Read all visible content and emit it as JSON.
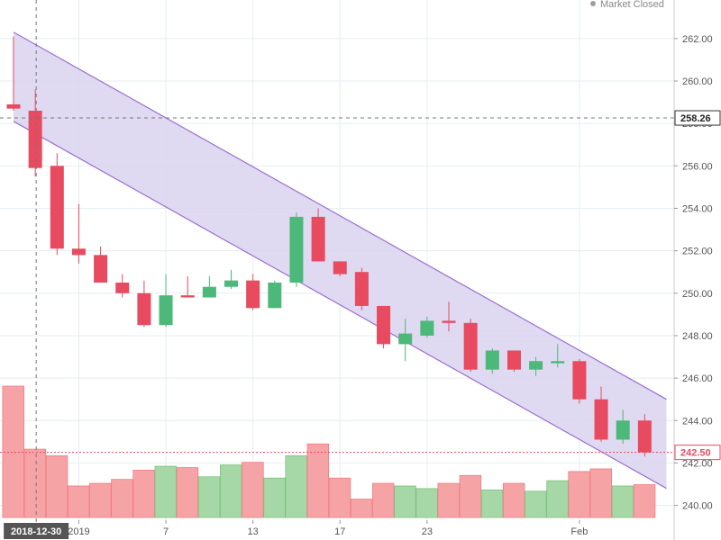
{
  "status": {
    "text": "Market Closed",
    "color": "#9e9e9e"
  },
  "chart_data": {
    "type": "candlestick",
    "ylim": [
      239.6,
      262.8
    ],
    "yticks": [
      240,
      242,
      244,
      246,
      248,
      250,
      252,
      254,
      256,
      258,
      260,
      262
    ],
    "ytick_labels": [
      "240.00",
      "242.00",
      "244.00",
      "246.00",
      "248.00",
      "250.00",
      "252.00",
      "254.00",
      "256.00",
      "258.00",
      "260.00",
      "262.00"
    ],
    "xtick_labels": [
      {
        "label": "2019",
        "index": 3
      },
      {
        "label": "7",
        "index": 7
      },
      {
        "label": "13",
        "index": 11
      },
      {
        "label": "17",
        "index": 15
      },
      {
        "label": "23",
        "index": 19
      },
      {
        "label": "Feb",
        "index": 26
      }
    ],
    "crosshair": {
      "x_label": "2018-12-30",
      "index": 1,
      "y_label": "258.26",
      "y_value": 258.26
    },
    "last_price": {
      "label": "242.50",
      "value": 242.5
    },
    "channel": {
      "upper": [
        [
          0,
          262.3
        ],
        [
          30,
          245.0
        ]
      ],
      "lower": [
        [
          0,
          258.1
        ],
        [
          30,
          240.8
        ]
      ]
    },
    "candles": [
      {
        "o": 258.9,
        "h": 262.1,
        "l": 258.6,
        "c": 258.7
      },
      {
        "o": 258.6,
        "h": 259.6,
        "l": 255.5,
        "c": 255.9
      },
      {
        "o": 256.0,
        "h": 256.6,
        "l": 251.8,
        "c": 252.1
      },
      {
        "o": 252.1,
        "h": 254.2,
        "l": 251.4,
        "c": 251.8
      },
      {
        "o": 251.8,
        "h": 252.2,
        "l": 250.5,
        "c": 250.5
      },
      {
        "o": 250.5,
        "h": 250.9,
        "l": 249.8,
        "c": 250.0
      },
      {
        "o": 250.0,
        "h": 250.6,
        "l": 248.4,
        "c": 248.5
      },
      {
        "o": 248.5,
        "h": 250.9,
        "l": 248.4,
        "c": 249.9
      },
      {
        "o": 249.9,
        "h": 250.8,
        "l": 249.8,
        "c": 249.8
      },
      {
        "o": 249.8,
        "h": 250.8,
        "l": 249.8,
        "c": 250.3
      },
      {
        "o": 250.3,
        "h": 251.1,
        "l": 250.2,
        "c": 250.6
      },
      {
        "o": 250.6,
        "h": 250.9,
        "l": 249.2,
        "c": 249.3
      },
      {
        "o": 249.3,
        "h": 250.6,
        "l": 249.3,
        "c": 250.5
      },
      {
        "o": 250.5,
        "h": 253.8,
        "l": 250.3,
        "c": 253.6
      },
      {
        "o": 253.6,
        "h": 254.0,
        "l": 251.5,
        "c": 251.5
      },
      {
        "o": 251.5,
        "h": 251.5,
        "l": 250.8,
        "c": 250.9
      },
      {
        "o": 251.0,
        "h": 251.2,
        "l": 249.2,
        "c": 249.4
      },
      {
        "o": 249.4,
        "h": 249.4,
        "l": 247.4,
        "c": 247.6
      },
      {
        "o": 247.6,
        "h": 248.8,
        "l": 246.8,
        "c": 248.1
      },
      {
        "o": 248.0,
        "h": 248.9,
        "l": 247.9,
        "c": 248.7
      },
      {
        "o": 248.7,
        "h": 249.6,
        "l": 248.2,
        "c": 248.6
      },
      {
        "o": 248.6,
        "h": 248.8,
        "l": 246.3,
        "c": 246.4
      },
      {
        "o": 246.4,
        "h": 247.4,
        "l": 246.2,
        "c": 247.3
      },
      {
        "o": 247.3,
        "h": 247.3,
        "l": 246.3,
        "c": 246.4
      },
      {
        "o": 246.4,
        "h": 247.0,
        "l": 246.1,
        "c": 246.8
      },
      {
        "o": 246.7,
        "h": 247.6,
        "l": 246.5,
        "c": 246.8
      },
      {
        "o": 246.8,
        "h": 246.9,
        "l": 244.8,
        "c": 245.0
      },
      {
        "o": 245.0,
        "h": 245.6,
        "l": 243.0,
        "c": 243.1
      },
      {
        "o": 243.1,
        "h": 244.5,
        "l": 242.9,
        "c": 244.0
      },
      {
        "o": 244.0,
        "h": 244.3,
        "l": 242.3,
        "c": 242.5
      }
    ],
    "volume": [
      {
        "v": 100,
        "up": false
      },
      {
        "v": 52,
        "up": false
      },
      {
        "v": 47,
        "up": false
      },
      {
        "v": 24,
        "up": false
      },
      {
        "v": 26,
        "up": false
      },
      {
        "v": 29,
        "up": false
      },
      {
        "v": 36,
        "up": false
      },
      {
        "v": 39,
        "up": true
      },
      {
        "v": 38,
        "up": false
      },
      {
        "v": 31,
        "up": true
      },
      {
        "v": 40,
        "up": true
      },
      {
        "v": 42,
        "up": false
      },
      {
        "v": 30,
        "up": true
      },
      {
        "v": 47,
        "up": true
      },
      {
        "v": 56,
        "up": false
      },
      {
        "v": 30,
        "up": false
      },
      {
        "v": 14,
        "up": false
      },
      {
        "v": 26,
        "up": false
      },
      {
        "v": 24,
        "up": true
      },
      {
        "v": 22,
        "up": true
      },
      {
        "v": 26,
        "up": false
      },
      {
        "v": 32,
        "up": false
      },
      {
        "v": 21,
        "up": true
      },
      {
        "v": 26,
        "up": false
      },
      {
        "v": 20,
        "up": true
      },
      {
        "v": 28,
        "up": true
      },
      {
        "v": 35,
        "up": false
      },
      {
        "v": 37,
        "up": false
      },
      {
        "v": 24,
        "up": true
      },
      {
        "v": 25,
        "up": false
      }
    ],
    "colors": {
      "up": "#4cb87a",
      "down": "#e84a5f",
      "vol_up": "#a6d7a6",
      "vol_down": "#f6a3a6",
      "channel_fill": "#d9d3ee",
      "channel_line": "#9b6fd0",
      "grid": "#e4eef1",
      "crosshair": "#777777",
      "last_price": "#e84a5f"
    }
  }
}
